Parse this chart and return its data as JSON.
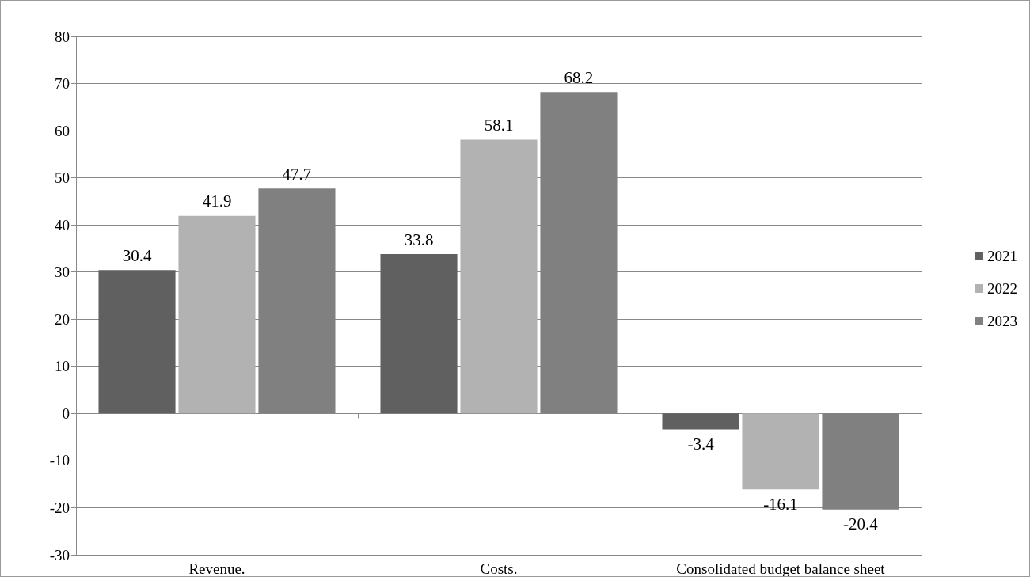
{
  "chart_data": {
    "type": "bar",
    "categories": [
      "Revenue.",
      "Costs.",
      "Consolidated budget balance sheet"
    ],
    "series": [
      {
        "name": "2021",
        "color": "#606060",
        "values": [
          30.4,
          33.8,
          -3.4
        ]
      },
      {
        "name": "2022",
        "color": "#b2b2b2",
        "values": [
          41.9,
          58.1,
          -16.1
        ]
      },
      {
        "name": "2023",
        "color": "#808080",
        "values": [
          47.7,
          68.2,
          -20.4
        ]
      }
    ],
    "ylim": [
      -30,
      80
    ],
    "yticks": [
      -30,
      -20,
      -10,
      0,
      10,
      20,
      30,
      40,
      50,
      60,
      70,
      80
    ],
    "grid": "y",
    "legend": "right",
    "data_labels": true
  }
}
